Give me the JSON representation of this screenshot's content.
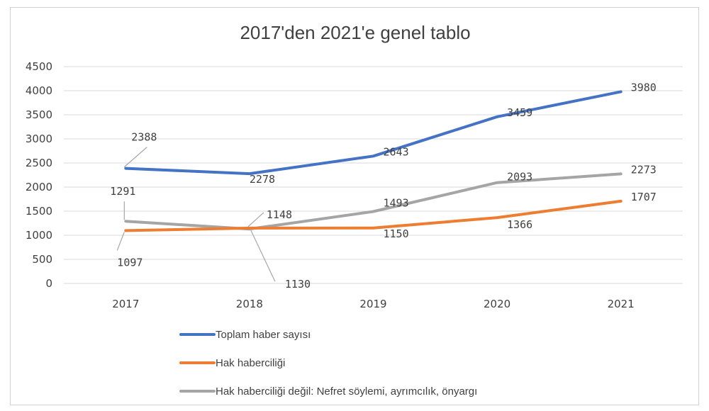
{
  "chart_data": {
    "type": "line",
    "title": "2017'den 2021'e genel tablo",
    "x": [
      "2017",
      "2018",
      "2019",
      "2020",
      "2021"
    ],
    "ylim": [
      0,
      4500
    ],
    "yticks": [
      0,
      500,
      1000,
      1500,
      2000,
      2500,
      3000,
      3500,
      4000,
      4500
    ],
    "grid": true,
    "legend_position": "bottom",
    "series": [
      {
        "name": "Toplam haber sayısı",
        "color": "#4472C4",
        "values": [
          2388,
          2278,
          2643,
          3459,
          3980
        ]
      },
      {
        "name": "Hak haberciliği",
        "color": "#ED7D31",
        "values": [
          1097,
          1148,
          1150,
          1366,
          1707
        ]
      },
      {
        "name": "Hak haberciliği değil: Nefret söylemi, ayrımcılık, önyargı",
        "color": "#A5A5A5",
        "values": [
          1291,
          1130,
          1493,
          2093,
          2273
        ]
      }
    ]
  }
}
